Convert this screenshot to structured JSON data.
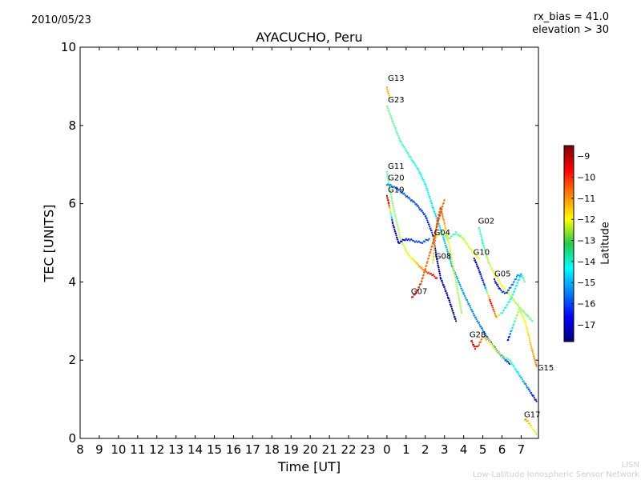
{
  "header": {
    "date": "2010/05/23",
    "rx_bias": "rx_bias = 41.0",
    "elevation": "elevation > 30"
  },
  "watermark": {
    "line1": "LISN",
    "line2": "Low-Latitude Ionospheric Sensor Network"
  },
  "chart_data": {
    "type": "scatter",
    "title": "AYACUCHO, Peru",
    "xlabel": "Time [UT]",
    "ylabel": "TEC [UNITS]",
    "x_range_hours": [
      -16,
      7.9
    ],
    "ylim": [
      0,
      10
    ],
    "x_ticks": [
      {
        "pos": -16,
        "label": "8"
      },
      {
        "pos": -15,
        "label": "9"
      },
      {
        "pos": -14,
        "label": "10"
      },
      {
        "pos": -13,
        "label": "11"
      },
      {
        "pos": -12,
        "label": "12"
      },
      {
        "pos": -11,
        "label": "13"
      },
      {
        "pos": -10,
        "label": "14"
      },
      {
        "pos": -9,
        "label": "15"
      },
      {
        "pos": -8,
        "label": "16"
      },
      {
        "pos": -7,
        "label": "17"
      },
      {
        "pos": -6,
        "label": "18"
      },
      {
        "pos": -5,
        "label": "19"
      },
      {
        "pos": -4,
        "label": "20"
      },
      {
        "pos": -3,
        "label": "21"
      },
      {
        "pos": -2,
        "label": "22"
      },
      {
        "pos": -1,
        "label": "23"
      },
      {
        "pos": 0,
        "label": "0"
      },
      {
        "pos": 1,
        "label": "1"
      },
      {
        "pos": 2,
        "label": "2"
      },
      {
        "pos": 3,
        "label": "3"
      },
      {
        "pos": 4,
        "label": "4"
      },
      {
        "pos": 5,
        "label": "5"
      },
      {
        "pos": 6,
        "label": "6"
      },
      {
        "pos": 7,
        "label": "7"
      }
    ],
    "y_ticks": [
      0,
      2,
      4,
      6,
      8,
      10
    ],
    "colorbar": {
      "label": "Latitude",
      "range": [
        -17.8,
        -8.5
      ],
      "ticks": [
        -9,
        -10,
        -11,
        -12,
        -13,
        -14,
        -15,
        -16,
        -17
      ]
    },
    "series": [
      {
        "name": "G13",
        "label_at": [
          0.05,
          9.1
        ],
        "points": [
          [
            0.0,
            8.95,
            -11.2
          ],
          [
            0.15,
            8.7,
            -11.5
          ]
        ]
      },
      {
        "name": "G23",
        "label_at": [
          0.05,
          8.55
        ],
        "points": [
          [
            0.0,
            8.5,
            -13.2
          ],
          [
            0.3,
            8.1,
            -13.4
          ],
          [
            0.7,
            7.6,
            -13.6
          ],
          [
            1.2,
            7.2,
            -13.9
          ],
          [
            1.6,
            6.9,
            -14.1
          ],
          [
            2.0,
            6.5,
            -14.3
          ],
          [
            2.4,
            5.9,
            -14.5
          ],
          [
            2.9,
            5.2,
            -14.8
          ],
          [
            3.4,
            4.4,
            -15.0
          ],
          [
            4.0,
            3.7,
            -15.2
          ],
          [
            4.6,
            3.1,
            -15.4
          ],
          [
            5.2,
            2.6,
            -15.6
          ],
          [
            5.8,
            2.2,
            -15.8
          ],
          [
            6.4,
            1.9,
            -16.1
          ]
        ]
      },
      {
        "name": "G11",
        "label_at": [
          0.05,
          6.85
        ],
        "points": [
          [
            0.0,
            6.8,
            -13.5
          ],
          [
            0.3,
            6.0,
            -13.2
          ],
          [
            0.7,
            5.1,
            -12.6
          ],
          [
            1.1,
            4.7,
            -12.3
          ],
          [
            1.5,
            4.5,
            -11.6
          ],
          [
            1.9,
            4.3,
            -10.9
          ],
          [
            2.3,
            4.2,
            -9.8
          ],
          [
            2.6,
            4.1,
            -9.2
          ]
        ]
      },
      {
        "name": "G20",
        "label_at": [
          0.05,
          6.55
        ],
        "points": [
          [
            0.0,
            6.5,
            -15.3
          ],
          [
            0.5,
            6.4,
            -15.6
          ],
          [
            1.0,
            6.2,
            -15.8
          ],
          [
            1.5,
            6.0,
            -16.0
          ],
          [
            2.0,
            5.7,
            -16.2
          ],
          [
            2.4,
            5.2,
            -16.4
          ],
          [
            2.6,
            4.6,
            -16.9
          ],
          [
            2.8,
            4.1,
            -17.2
          ],
          [
            3.2,
            3.6,
            -17.4
          ],
          [
            3.6,
            3.0,
            -17.6
          ]
        ]
      },
      {
        "name": "G19",
        "label_at": [
          0.05,
          6.25
        ],
        "points": [
          [
            0.0,
            6.2,
            -8.9
          ],
          [
            0.1,
            6.0,
            -9.5
          ],
          [
            0.3,
            5.5,
            -17.0
          ],
          [
            0.6,
            5.0,
            -17.3
          ],
          [
            1.0,
            5.1,
            -16.5
          ],
          [
            1.4,
            5.05,
            -16.0
          ],
          [
            1.8,
            5.0,
            -15.9
          ],
          [
            2.2,
            5.1,
            -15.8
          ]
        ]
      },
      {
        "name": "G04",
        "label_at": [
          2.45,
          5.15
        ],
        "points": [
          [
            2.4,
            5.1,
            -12.1
          ],
          [
            2.8,
            5.25,
            -12.8
          ],
          [
            3.2,
            5.1,
            -13.4
          ],
          [
            3.6,
            5.25,
            -13.7
          ],
          [
            4.0,
            5.1,
            -12.6
          ],
          [
            4.4,
            4.8,
            -12.2
          ],
          [
            4.8,
            4.6,
            -12.0
          ]
        ]
      },
      {
        "name": "G08",
        "label_at": [
          2.5,
          4.55
        ],
        "points": [
          [
            2.4,
            4.5,
            -11.7
          ],
          [
            2.6,
            5.5,
            -10.6
          ],
          [
            2.8,
            5.9,
            -10.2
          ],
          [
            3.0,
            5.5,
            -11.2
          ],
          [
            3.3,
            4.8,
            -12.3
          ],
          [
            3.6,
            4.0,
            -12.6
          ],
          [
            3.9,
            3.2,
            -12.9
          ]
        ]
      },
      {
        "name": "G07",
        "label_at": [
          1.25,
          3.65
        ],
        "points": [
          [
            1.3,
            3.6,
            -9.5
          ],
          [
            1.5,
            3.7,
            -9.6
          ],
          [
            1.8,
            4.0,
            -10.3
          ],
          [
            2.1,
            4.5,
            -10.8
          ],
          [
            2.4,
            5.0,
            -10.5
          ],
          [
            2.7,
            5.6,
            -10.1
          ],
          [
            3.0,
            6.1,
            -10.8
          ]
        ]
      },
      {
        "name": "G02",
        "label_at": [
          4.75,
          5.45
        ],
        "points": [
          [
            4.8,
            5.4,
            -13.6
          ],
          [
            5.0,
            5.0,
            -13.9
          ],
          [
            5.3,
            4.5,
            -12.6
          ],
          [
            5.6,
            4.2,
            -12.2
          ],
          [
            6.0,
            3.9,
            -11.9
          ],
          [
            6.5,
            3.6,
            -12.3
          ],
          [
            7.0,
            3.3,
            -13.0
          ],
          [
            7.6,
            3.0,
            -13.4
          ]
        ]
      },
      {
        "name": "G10",
        "label_at": [
          4.5,
          4.65
        ],
        "points": [
          [
            4.55,
            4.6,
            -17.5
          ],
          [
            4.8,
            4.3,
            -16.8
          ],
          [
            5.1,
            3.9,
            -16.0
          ],
          [
            5.4,
            3.5,
            -9.5
          ],
          [
            5.7,
            3.1,
            -11.0
          ],
          [
            6.0,
            3.2,
            -14.0
          ],
          [
            6.5,
            3.6,
            -14.2
          ],
          [
            7.0,
            4.2,
            -14.5
          ],
          [
            7.2,
            4.0,
            -13.0
          ]
        ]
      },
      {
        "name": "G05",
        "label_at": [
          5.6,
          4.1
        ],
        "points": [
          [
            5.6,
            4.05,
            -17.0
          ],
          [
            5.9,
            3.8,
            -16.3
          ],
          [
            6.2,
            3.7,
            -16.0
          ],
          [
            6.5,
            3.9,
            -15.6
          ],
          [
            6.8,
            4.15,
            -15.2
          ],
          [
            7.0,
            4.2,
            -15.0
          ]
        ]
      },
      {
        "name": "G28",
        "label_at": [
          4.3,
          2.55
        ],
        "points": [
          [
            4.4,
            2.5,
            -9.2
          ],
          [
            4.6,
            2.3,
            -9.4
          ],
          [
            4.8,
            2.4,
            -10.2
          ],
          [
            5.0,
            2.6,
            -11.0
          ],
          [
            5.3,
            2.5,
            -11.5
          ],
          [
            5.6,
            2.3,
            -12.4
          ],
          [
            6.0,
            2.1,
            -13.0
          ],
          [
            6.4,
            2.0,
            -13.6
          ],
          [
            6.8,
            1.7,
            -14.4
          ],
          [
            7.2,
            1.4,
            -15.2
          ],
          [
            7.6,
            1.1,
            -16.3
          ],
          [
            7.8,
            0.95,
            -17.2
          ]
        ]
      },
      {
        "name": "G15",
        "label_at": [
          7.85,
          1.7
        ],
        "points": [
          [
            6.3,
            2.5,
            -17.2
          ],
          [
            6.6,
            2.9,
            -13.8
          ],
          [
            6.9,
            3.3,
            -12.6
          ],
          [
            7.2,
            3.0,
            -12.0
          ],
          [
            7.4,
            2.6,
            -11.7
          ],
          [
            7.6,
            2.2,
            -11.2
          ],
          [
            7.8,
            1.85,
            -10.6
          ]
        ]
      },
      {
        "name": "G17",
        "label_at": [
          7.15,
          0.5
        ],
        "points": [
          [
            7.2,
            0.5,
            -11.0
          ],
          [
            7.4,
            0.4,
            -11.5
          ],
          [
            7.6,
            0.25,
            -12.0
          ],
          [
            7.8,
            0.1,
            -12.6
          ]
        ]
      }
    ]
  }
}
